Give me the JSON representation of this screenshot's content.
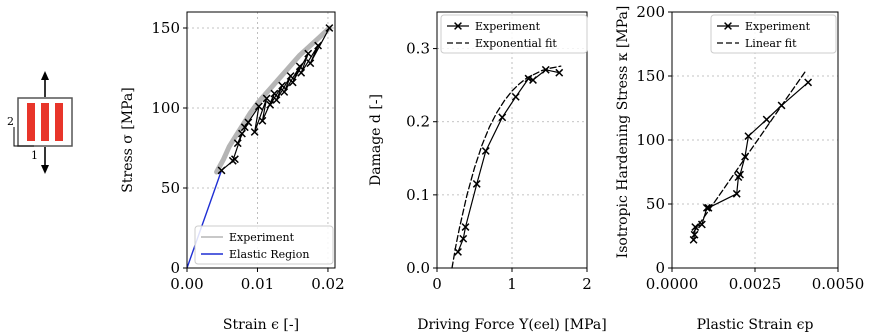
{
  "colors": {
    "specimen_stripe": "#e8352a",
    "experiment_gray": "#b5b5b5",
    "elastic_blue": "#1f2fd4",
    "black": "#000000",
    "grid": "#b0b0b0"
  },
  "inset": {
    "direction_2_label": "2",
    "direction_1_label": "1"
  },
  "chart_data": [
    {
      "type": "line",
      "xlabel": "Strain ϵ [-]",
      "ylabel": "Stress σ [MPa]",
      "xlim": [
        0,
        0.021
      ],
      "ylim": [
        0,
        160
      ],
      "xticks": [
        0.0,
        0.01,
        0.02
      ],
      "xtick_labels": [
        "0.00",
        "0.01",
        "0.02"
      ],
      "yticks": [
        0,
        50,
        100,
        150
      ],
      "ytick_labels": [
        "0",
        "50",
        "100",
        "150"
      ],
      "grid": true,
      "legend_position": "lower-right",
      "series": [
        {
          "name": "Experiment",
          "style": "gray-band",
          "x": [
            0.0042,
            0.0052,
            0.006,
            0.007,
            0.008,
            0.009,
            0.01,
            0.011,
            0.012,
            0.013,
            0.014,
            0.015,
            0.016,
            0.017,
            0.018,
            0.019,
            0.0202
          ],
          "y": [
            60,
            68,
            76,
            83,
            90,
            97,
            103,
            108,
            113,
            118,
            123,
            128,
            133,
            137,
            141,
            145,
            150
          ]
        },
        {
          "name": "Elastic Region",
          "style": "blue-line",
          "x": [
            0.0,
            0.0049
          ],
          "y": [
            0,
            61
          ]
        },
        {
          "name": "",
          "style": "black-x-cycles",
          "x": [
            0.0049,
            0.0068,
            0.0065,
            0.0078,
            0.0072,
            0.0087,
            0.0082,
            0.0102,
            0.0096,
            0.0113,
            0.0107,
            0.0124,
            0.0118,
            0.0135,
            0.0127,
            0.0147,
            0.0138,
            0.016,
            0.015,
            0.0172,
            0.0162,
            0.0186,
            0.0175,
            0.0202
          ],
          "y": [
            61,
            68,
            67,
            84,
            78,
            91,
            88,
            101,
            85,
            106,
            92,
            109,
            102,
            114,
            105,
            120,
            110,
            126,
            116,
            134,
            122,
            139,
            128,
            150
          ]
        }
      ]
    },
    {
      "type": "line",
      "xlabel": "Driving Force Y(ϵel) [MPa]",
      "ylabel": "Damage d [-]",
      "xlim": [
        0,
        2
      ],
      "ylim": [
        0,
        0.35
      ],
      "xticks": [
        0,
        1,
        2
      ],
      "xtick_labels": [
        "0",
        "1",
        "2"
      ],
      "yticks": [
        0.0,
        0.1,
        0.2,
        0.3
      ],
      "ytick_labels": [
        "0.0",
        "0.1",
        "0.2",
        "0.3"
      ],
      "grid": true,
      "legend_position": "top-left",
      "series": [
        {
          "name": "Experiment",
          "style": "solid-x",
          "x": [
            0.28,
            0.35,
            0.38,
            0.53,
            0.65,
            0.87,
            1.05,
            1.22,
            1.28,
            1.45,
            1.63
          ],
          "y": [
            0.022,
            0.04,
            0.056,
            0.115,
            0.16,
            0.206,
            0.234,
            0.259,
            0.257,
            0.271,
            0.267
          ]
        },
        {
          "name": "Exponential fit",
          "style": "dashed",
          "x": [
            0.2,
            0.25,
            0.3,
            0.4,
            0.5,
            0.6,
            0.7,
            0.8,
            0.9,
            1.0,
            1.1,
            1.2,
            1.3,
            1.4,
            1.5,
            1.6,
            1.65
          ],
          "y": [
            0.0,
            0.03,
            0.055,
            0.1,
            0.137,
            0.168,
            0.193,
            0.213,
            0.229,
            0.242,
            0.252,
            0.26,
            0.265,
            0.27,
            0.273,
            0.275,
            0.276
          ]
        }
      ]
    },
    {
      "type": "line",
      "xlabel": "Plastic Strain ϵp",
      "ylabel": "Isotropic Hardening Stress κ [MPa]",
      "xlim": [
        0,
        0.005
      ],
      "ylim": [
        0,
        200
      ],
      "xticks": [
        0.0,
        0.0025,
        0.005
      ],
      "xtick_labels": [
        "0.0000",
        "0.0025",
        "0.0050"
      ],
      "yticks": [
        0,
        50,
        100,
        150,
        200
      ],
      "ytick_labels": [
        "0",
        "50",
        "100",
        "150",
        "200"
      ],
      "grid": true,
      "legend_position": "top-right",
      "series": [
        {
          "name": "Experiment",
          "style": "solid-x",
          "x": [
            0.00065,
            0.00068,
            0.0007,
            0.0009,
            0.00105,
            0.0011,
            0.00195,
            0.002,
            0.00205,
            0.0022,
            0.0023,
            0.00285,
            0.0033,
            0.0041
          ],
          "y": [
            22,
            26,
            32,
            34,
            47,
            47,
            58,
            71,
            73,
            87,
            103,
            116,
            127,
            145
          ]
        },
        {
          "name": "Linear fit",
          "style": "dashed",
          "x": [
            0.00065,
            0.004
          ],
          "y": [
            28,
            153
          ]
        }
      ]
    }
  ]
}
